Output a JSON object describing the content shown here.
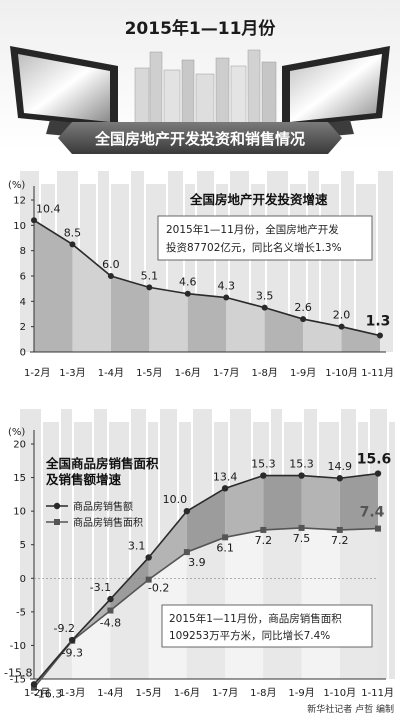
{
  "header": {
    "period_title": "2015年1—11月份",
    "main_title": "全国房地产开发投资和销售情况"
  },
  "credit": "新华社记者 卢哲 编制",
  "colors": {
    "line": "#2a2a2a",
    "area": "#b4b4b4",
    "area_light": "#d2d2d2",
    "band": "#9c9c9c",
    "banner": "#555555",
    "skyline": "#e6e6e6"
  },
  "chart_data": [
    {
      "type": "area",
      "title": "全国房地产开发投资增速",
      "ylabel": "(%)",
      "ylim": [
        0,
        12
      ],
      "yticks": [
        0,
        2,
        4,
        6,
        8,
        10,
        12
      ],
      "categories": [
        "1-2月",
        "1-3月",
        "1-4月",
        "1-5月",
        "1-6月",
        "1-7月",
        "1-8月",
        "1-9月",
        "1-10月",
        "1-11月"
      ],
      "values": [
        10.4,
        8.5,
        6.0,
        5.1,
        4.6,
        4.3,
        3.5,
        2.6,
        2.0,
        1.3
      ],
      "value_labels": [
        "10.4",
        "8.5",
        "6.0",
        "5.1",
        "4.6",
        "4.3",
        "3.5",
        "2.6",
        "2.0",
        "1.3"
      ],
      "annotation": [
        "2015年1—11月份，全国房地产开发",
        "投资87702亿元，同比名义增长1.3%"
      ],
      "grid": false
    },
    {
      "type": "line",
      "title": [
        "全国商品房销售面积",
        "及销售额增速"
      ],
      "ylabel": "(%)",
      "ylim": [
        -15,
        20
      ],
      "yticks": [
        -15,
        -10,
        -5,
        0,
        5,
        10,
        15,
        20
      ],
      "categories": [
        "1-2月",
        "1-3月",
        "1-4月",
        "1-5月",
        "1-6月",
        "1-7月",
        "1-8月",
        "1-9月",
        "1-10月",
        "1-11月"
      ],
      "series": [
        {
          "name": "商品房销售额",
          "marker": "circle",
          "values": [
            -15.8,
            -9.2,
            -3.1,
            3.1,
            10.0,
            13.4,
            15.3,
            15.3,
            14.9,
            15.6
          ],
          "value_labels": [
            "-15.8",
            "-9.2",
            "-3.1",
            "3.1",
            "10.0",
            "13.4",
            "15.3",
            "15.3",
            "14.9",
            "15.6"
          ]
        },
        {
          "name": "商品房销售面积",
          "marker": "square",
          "values": [
            -16.3,
            -9.3,
            -4.8,
            -0.2,
            3.9,
            6.1,
            7.2,
            7.5,
            7.2,
            7.4
          ],
          "value_labels": [
            "-16.3",
            "-9.3",
            "-4.8",
            "-0.2",
            "3.9",
            "6.1",
            "7.2",
            "7.5",
            "7.2",
            "7.4"
          ]
        }
      ],
      "annotation": [
        "2015年1—11月份，商品房销售面积",
        "109253万平方米，同比增长7.4%"
      ],
      "legend": "top-left",
      "grid": false
    }
  ]
}
